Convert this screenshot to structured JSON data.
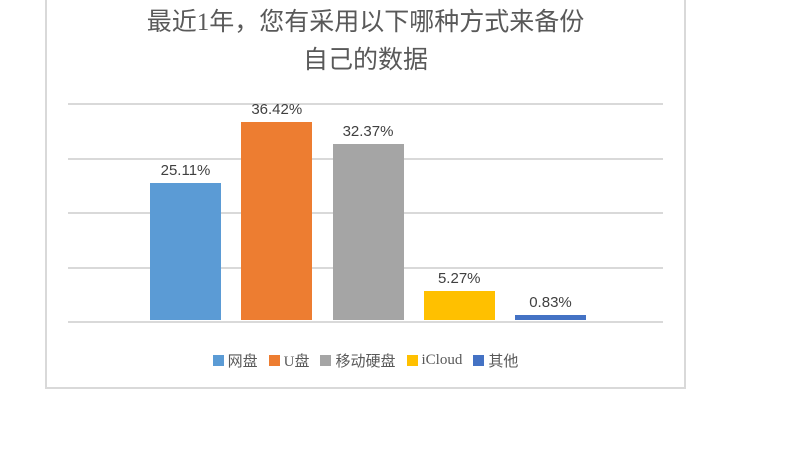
{
  "title": {
    "line1": "最近1年，您有采用以下哪种方式来备份",
    "line2": "自己的数据"
  },
  "chart_data": {
    "type": "bar",
    "title": "最近1年，您有采用以下哪种方式来备份自己的数据",
    "categories": [
      "网盘",
      "U盘",
      "移动硬盘",
      "iCloud",
      "其他"
    ],
    "category_slugs": [
      "cloud-drive",
      "usb-drive",
      "portable-hdd",
      "icloud",
      "other"
    ],
    "values": [
      25.11,
      36.42,
      32.37,
      5.27,
      0.83
    ],
    "value_labels": [
      "25.11%",
      "36.42%",
      "32.37%",
      "5.27%",
      "0.83%"
    ],
    "bar_colors": [
      "#5B9BD5",
      "#ED7D31",
      "#A5A5A5",
      "#FFC000",
      "#4472C4"
    ],
    "xlabel": "",
    "ylabel": "",
    "ylim": [
      0,
      40
    ],
    "gridlines_pct": [
      0,
      10,
      20,
      30,
      40
    ],
    "grid": true,
    "y_tick_labels_shown": false,
    "legend_position": "bottom"
  },
  "colors": {
    "gridline": "#D9D9D9",
    "frame_border": "#D9D9D9",
    "title_text": "#595959",
    "label_text": "#404040",
    "legend_text": "#595959",
    "background": "#FFFFFF"
  }
}
